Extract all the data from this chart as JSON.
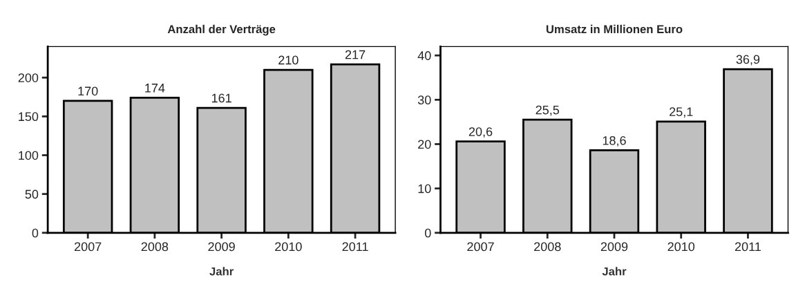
{
  "chart_data": [
    {
      "type": "bar",
      "title": "Anzahl der Verträge",
      "xlabel": "Jahr",
      "categories": [
        "2007",
        "2008",
        "2009",
        "2010",
        "2011"
      ],
      "series": [
        {
          "color": "#c0c0c0",
          "values": [
            170,
            174,
            161,
            210,
            217
          ]
        }
      ],
      "ylim": [
        0,
        240
      ],
      "yticks": [
        0,
        50,
        100,
        150,
        200
      ],
      "data_labels": true,
      "grid": false,
      "legend": false
    },
    {
      "type": "bar",
      "title": "Umsatz in Millionen Euro",
      "xlabel": "Jahr",
      "categories": [
        "2007",
        "2008",
        "2009",
        "2010",
        "2011"
      ],
      "series": [
        {
          "color": "#c0c0c0",
          "values": [
            20.6,
            25.5,
            18.6,
            25.1,
            36.9
          ],
          "value_labels": [
            "20,6",
            "25,5",
            "18,6",
            "25,1",
            "36,9"
          ]
        }
      ],
      "ylim": [
        0,
        42
      ],
      "yticks": [
        0,
        10,
        20,
        30,
        40
      ],
      "grid": false,
      "legend": false
    }
  ]
}
